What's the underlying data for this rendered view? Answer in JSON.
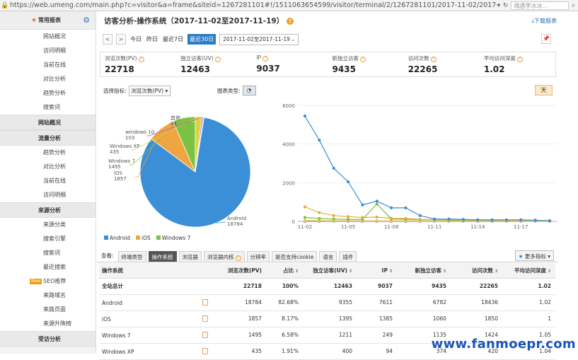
{
  "browser": {
    "url": "https://web.umeng.com/main.php?c=visitor&a=frame&siteid=1267281101#!/1511063654599/visitor/terminal/2/1267281101/2017-11-02/2017-11-19",
    "search_placeholder": "偶遇李冰冰..."
  },
  "sidebar": {
    "header": "常用报表",
    "group1": [
      "网站概况",
      "访问明细",
      "当前在线",
      "对比分析",
      "趋势分析",
      "搜索词"
    ],
    "sec_overview": "网站概况",
    "sec_traffic": "流量分析",
    "group2": [
      "趋势分析",
      "对比分析",
      "当前在线",
      "访问明细"
    ],
    "sec_source": "来源分析",
    "group3": [
      "来源分类",
      "搜索引擎",
      "搜索词",
      "最近搜索"
    ],
    "new_badge": "New",
    "seo": "SEO推荐",
    "group4": [
      "来路域名",
      "来路页面",
      "来源升降榜"
    ],
    "sec_visited": "受访分析"
  },
  "header": {
    "title": "访客分析-操作系统（2017-11-02至2017-11-19）",
    "download": "下载报表"
  },
  "toolbar": {
    "prev": "<",
    "next": ">",
    "today": "今日",
    "yesterday": "昨日",
    "last7": "最近7日",
    "last30": "最近30日",
    "date_range": "2017-11-02至2017-11-19"
  },
  "metrics": [
    {
      "label": "浏览次数(PV)",
      "value": "22718"
    },
    {
      "label": "独立访客(UV)",
      "value": "12463"
    },
    {
      "label": "IP",
      "value": "9037"
    },
    {
      "label": "新独立访客",
      "value": "9435"
    },
    {
      "label": "访问次数",
      "value": "22265"
    },
    {
      "label": "平均访问深度",
      "value": "1.02"
    }
  ],
  "controls": {
    "indicator_label": "选择指标:",
    "indicator_value": "浏览次数(PV)",
    "chart_type_label": "图表类型:",
    "day_button": "天"
  },
  "colors": {
    "android": "#3b8fd6",
    "ios": "#f0a640",
    "win7": "#7cc142",
    "winxp": "#d6d63a",
    "win10": "#c84bd1",
    "other": "#f5e96a",
    "accent": "#2a7cc7"
  },
  "chart_data": [
    {
      "type": "pie",
      "title": "",
      "slices": [
        {
          "name": "Android",
          "value": 18784
        },
        {
          "name": "iOS",
          "value": 1857
        },
        {
          "name": "Windows 7",
          "value": 1495
        },
        {
          "name": "Windows XP",
          "value": 435
        },
        {
          "name": "windows 10",
          "value": 103
        },
        {
          "name": "其他",
          "value": 44
        }
      ],
      "labels": [
        {
          "name": "Android",
          "value": "18784"
        },
        {
          "name": "iOS",
          "value": "1857"
        },
        {
          "name": "Windows 7",
          "value": "1495"
        },
        {
          "name": "Windows XP",
          "value": "435"
        },
        {
          "name": "windows 10",
          "value": "103"
        },
        {
          "name": "其他",
          "value": "44"
        }
      ],
      "legend": [
        "Android",
        "iOS",
        "Windows 7"
      ],
      "legend_position": "bottom-left"
    },
    {
      "type": "line",
      "x": [
        "11-02",
        "11-03",
        "11-04",
        "11-05",
        "11-06",
        "11-07",
        "11-08",
        "11-09",
        "11-10",
        "11-11",
        "11-12",
        "11-13",
        "11-14",
        "11-15",
        "11-16",
        "11-17",
        "11-18",
        "11-19"
      ],
      "x_ticks": [
        "11-02",
        "11-05",
        "11-08",
        "11-11",
        "11-14",
        "11-17"
      ],
      "ylim": [
        0,
        6000
      ],
      "y_ticks": [
        0,
        2000,
        4000,
        6000
      ],
      "grid": true,
      "series": [
        {
          "name": "Android",
          "values": [
            5450,
            4200,
            2750,
            2050,
            850,
            1050,
            700,
            700,
            300,
            120,
            120,
            100,
            80,
            80,
            80,
            80,
            60,
            30
          ]
        },
        {
          "name": "iOS",
          "values": [
            750,
            450,
            300,
            250,
            200,
            220,
            160,
            150,
            100,
            90,
            80,
            80,
            70,
            70,
            60,
            60,
            50,
            40
          ]
        },
        {
          "name": "Windows 7",
          "values": [
            200,
            150,
            120,
            100,
            100,
            900,
            120,
            100,
            80,
            80,
            60,
            60,
            60,
            50,
            50,
            50,
            40,
            40
          ]
        },
        {
          "name": "Windows XP",
          "values": [
            40,
            40,
            30,
            30,
            30,
            30,
            25,
            25,
            20,
            20,
            20,
            20,
            20,
            20,
            20,
            20,
            15,
            15
          ]
        },
        {
          "name": "windows 10",
          "values": [
            10,
            8,
            8,
            6,
            6,
            6,
            5,
            5,
            5,
            5,
            5,
            5,
            5,
            5,
            5,
            5,
            5,
            5
          ]
        }
      ]
    }
  ],
  "tabs": {
    "label": "查看:",
    "items": [
      "终端类型",
      "操作系统",
      "浏览器",
      "浏览器内核",
      "分辨率",
      "是否支持cookie",
      "语言",
      "插件"
    ],
    "more": "更多指标"
  },
  "table": {
    "headers": [
      "操作系统",
      "浏览次数(PV)",
      "占比",
      "独立访客(UV)",
      "IP",
      "新独立访客",
      "访问次数",
      "平均访问深度"
    ],
    "rows": [
      [
        "全站总计",
        "22718",
        "100%",
        "12463",
        "9037",
        "9435",
        "22265",
        "1.02"
      ],
      [
        "Android",
        "18784",
        "82.68%",
        "9355",
        "7611",
        "6782",
        "18436",
        "1.02"
      ],
      [
        "iOS",
        "1857",
        "8.17%",
        "1395",
        "1385",
        "1060",
        "1850",
        "1"
      ],
      [
        "Windows 7",
        "1495",
        "6.58%",
        "1211",
        "249",
        "1135",
        "1424",
        "1.05"
      ],
      [
        "Windows XP",
        "435",
        "1.91%",
        "400",
        "94",
        "374",
        "420",
        "1.04"
      ]
    ]
  },
  "watermark": "www.fanmoepr.com"
}
